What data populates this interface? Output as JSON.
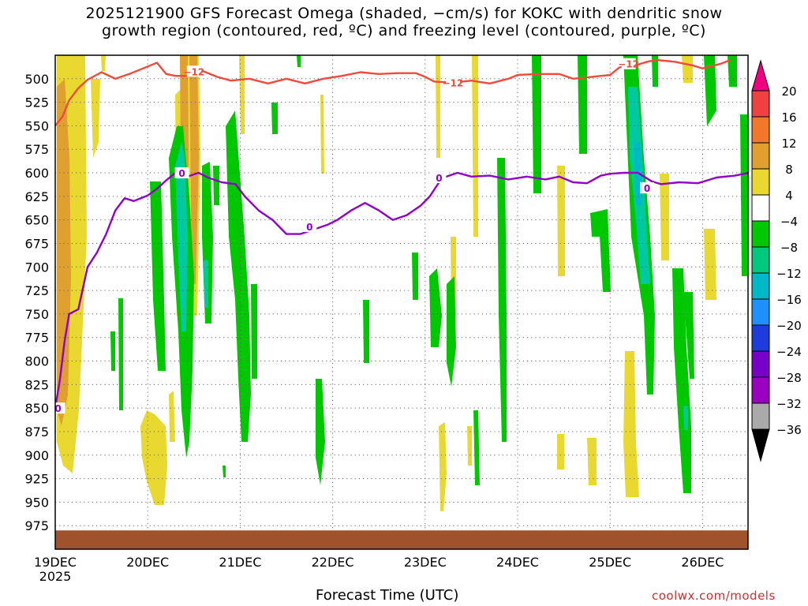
{
  "title_line1": "2025121900 GFS Forecast Omega (shaded, −cm/s) for KOKC with dendritic snow",
  "title_line2": "growth region (contoured, red, ºC) and freezing level (contoured, purple, ºC)",
  "xlabel": "Forecast Time (UTC)",
  "credit": "coolwx.com/models",
  "chart_data": {
    "type": "heatmap",
    "x_ticks": [
      "19DEC\n2025",
      "20DEC",
      "21DEC",
      "22DEC",
      "23DEC",
      "24DEC",
      "25DEC",
      "26DEC"
    ],
    "x_range_days": [
      0,
      7.5
    ],
    "y_ticks": [
      500,
      525,
      550,
      575,
      600,
      625,
      650,
      675,
      700,
      725,
      750,
      775,
      800,
      825,
      850,
      875,
      900,
      925,
      950,
      975
    ],
    "ylim": [
      1000,
      475
    ],
    "y_scale": "linear-pressure-hPa-inverted",
    "grid": true,
    "colorbar": {
      "labels": [
        "20",
        "16",
        "12",
        "8",
        "4",
        "−4",
        "−8",
        "−12",
        "−16",
        "−20",
        "−24",
        "−28",
        "−32",
        "−36"
      ],
      "colors": [
        "#ee0080",
        "#f04040",
        "#f07828",
        "#e0a030",
        "#e8d830",
        "#ffffff",
        "#00c800",
        "#00c880",
        "#00b8c8",
        "#1e90ff",
        "#1e3cdc",
        "#7800c8",
        "#9a00c0",
        "#aaaaaa",
        "#000000"
      ]
    },
    "contours": [
      {
        "label": "−12",
        "color": "#f04a3c",
        "points": [
          [
            0,
            550
          ],
          [
            0.08,
            540
          ],
          [
            0.15,
            523
          ],
          [
            0.25,
            510
          ],
          [
            0.35,
            501
          ],
          [
            0.5,
            493
          ],
          [
            0.65,
            500
          ],
          [
            0.8,
            495
          ],
          [
            1.0,
            487
          ],
          [
            1.1,
            483
          ],
          [
            1.2,
            495
          ],
          [
            1.3,
            497
          ],
          [
            1.45,
            497
          ],
          [
            1.6,
            492
          ],
          [
            1.75,
            498
          ],
          [
            1.9,
            502
          ],
          [
            2.1,
            500
          ],
          [
            2.3,
            505
          ],
          [
            2.5,
            500
          ],
          [
            2.7,
            505
          ],
          [
            2.9,
            500
          ],
          [
            3.1,
            497
          ],
          [
            3.3,
            493
          ],
          [
            3.5,
            495
          ],
          [
            3.7,
            494
          ],
          [
            3.9,
            494
          ],
          [
            4.0,
            498
          ],
          [
            4.1,
            503
          ],
          [
            4.3,
            504
          ],
          [
            4.5,
            502
          ],
          [
            4.7,
            505
          ],
          [
            4.9,
            500
          ],
          [
            5.0,
            496
          ],
          [
            5.2,
            495
          ],
          [
            5.45,
            495
          ],
          [
            5.6,
            500
          ],
          [
            5.8,
            498
          ],
          [
            6.0,
            496
          ],
          [
            6.1,
            488
          ],
          [
            6.3,
            485
          ],
          [
            6.4,
            482
          ],
          [
            6.5,
            480
          ],
          [
            6.7,
            482
          ],
          [
            6.9,
            486
          ],
          [
            7.0,
            489
          ],
          [
            7.2,
            484
          ],
          [
            7.3,
            480
          ]
        ]
      },
      {
        "label": "0",
        "color": "#9000c8",
        "points": [
          [
            0,
            850
          ],
          [
            0.05,
            820
          ],
          [
            0.1,
            780
          ],
          [
            0.15,
            750
          ],
          [
            0.25,
            745
          ],
          [
            0.35,
            700
          ],
          [
            0.45,
            685
          ],
          [
            0.55,
            665
          ],
          [
            0.65,
            640
          ],
          [
            0.75,
            627
          ],
          [
            0.85,
            630
          ],
          [
            1.0,
            624
          ],
          [
            1.1,
            617
          ],
          [
            1.2,
            608
          ],
          [
            1.3,
            600
          ],
          [
            1.4,
            605
          ],
          [
            1.55,
            600
          ],
          [
            1.65,
            605
          ],
          [
            1.8,
            610
          ],
          [
            1.95,
            612
          ],
          [
            2.05,
            625
          ],
          [
            2.2,
            640
          ],
          [
            2.35,
            650
          ],
          [
            2.5,
            665
          ],
          [
            2.65,
            665
          ],
          [
            2.8,
            660
          ],
          [
            2.95,
            655
          ],
          [
            3.05,
            650
          ],
          [
            3.2,
            640
          ],
          [
            3.35,
            632
          ],
          [
            3.5,
            640
          ],
          [
            3.65,
            650
          ],
          [
            3.8,
            645
          ],
          [
            3.95,
            635
          ],
          [
            4.05,
            625
          ],
          [
            4.15,
            610
          ],
          [
            4.2,
            605
          ],
          [
            4.35,
            600
          ],
          [
            4.5,
            604
          ],
          [
            4.7,
            603
          ],
          [
            4.9,
            607
          ],
          [
            5.1,
            604
          ],
          [
            5.3,
            607
          ],
          [
            5.45,
            604
          ],
          [
            5.6,
            610
          ],
          [
            5.75,
            611
          ],
          [
            5.9,
            603
          ],
          [
            6.0,
            601
          ],
          [
            6.15,
            600
          ],
          [
            6.3,
            600
          ],
          [
            6.45,
            609
          ],
          [
            6.55,
            612
          ],
          [
            6.75,
            610
          ],
          [
            6.95,
            611
          ],
          [
            7.15,
            605
          ],
          [
            7.35,
            603
          ],
          [
            7.5,
            600
          ]
        ],
        "labels_at": [
          [
            0.03,
            850
          ],
          [
            1.37,
            600
          ],
          [
            2.75,
            657
          ],
          [
            4.15,
            605
          ],
          [
            6.4,
            616
          ]
        ]
      }
    ],
    "terrain_top_hPa": 975,
    "colors": {
      "terrain": "#a0522d",
      "grid": "#666666"
    }
  }
}
